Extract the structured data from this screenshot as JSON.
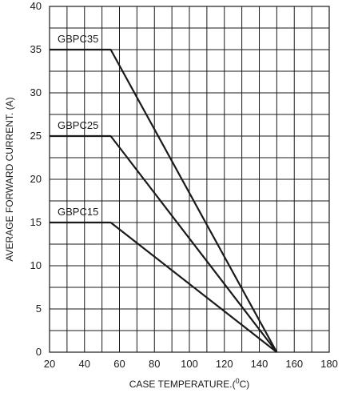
{
  "chart_data": {
    "type": "line",
    "xlabel_main": "CASE TEMPERATURE.(",
    "xlabel_sup": "0",
    "xlabel_end": "C)",
    "ylabel": "AVERAGE FORWARD CURRENT. (A)",
    "xlim": [
      20,
      180
    ],
    "ylim": [
      0,
      40
    ],
    "x_ticks": [
      20,
      40,
      60,
      80,
      100,
      120,
      140,
      160,
      180
    ],
    "y_ticks": [
      0,
      5,
      10,
      15,
      20,
      25,
      30,
      35,
      40
    ],
    "grid": true,
    "series": [
      {
        "name": "GBPC35",
        "x": [
          20,
          55,
          150
        ],
        "y": [
          35,
          35,
          0
        ]
      },
      {
        "name": "GBPC25",
        "x": [
          20,
          55,
          150
        ],
        "y": [
          25,
          25,
          0
        ]
      },
      {
        "name": "GBPC15",
        "x": [
          20,
          55,
          150
        ],
        "y": [
          15,
          15,
          0
        ]
      }
    ]
  }
}
